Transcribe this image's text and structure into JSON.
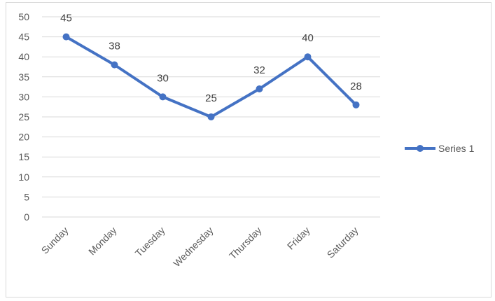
{
  "chart_data": {
    "type": "line",
    "title": "",
    "xlabel": "",
    "ylabel": "",
    "categories": [
      "Sunday",
      "Monday",
      "Tuesday",
      "Wednesday",
      "Thursday",
      "Friday",
      "Saturday"
    ],
    "series": [
      {
        "name": "Series 1",
        "values": [
          45,
          38,
          30,
          25,
          32,
          40,
          28
        ],
        "color": "#4472C4"
      }
    ],
    "ylim": [
      0,
      50
    ],
    "ytick_step": 5,
    "grid": true,
    "data_labels": true,
    "legend_position": "right",
    "colors": {
      "grid": "#d9d9d9",
      "text": "#595959",
      "frame": "#d9d9d9"
    }
  }
}
